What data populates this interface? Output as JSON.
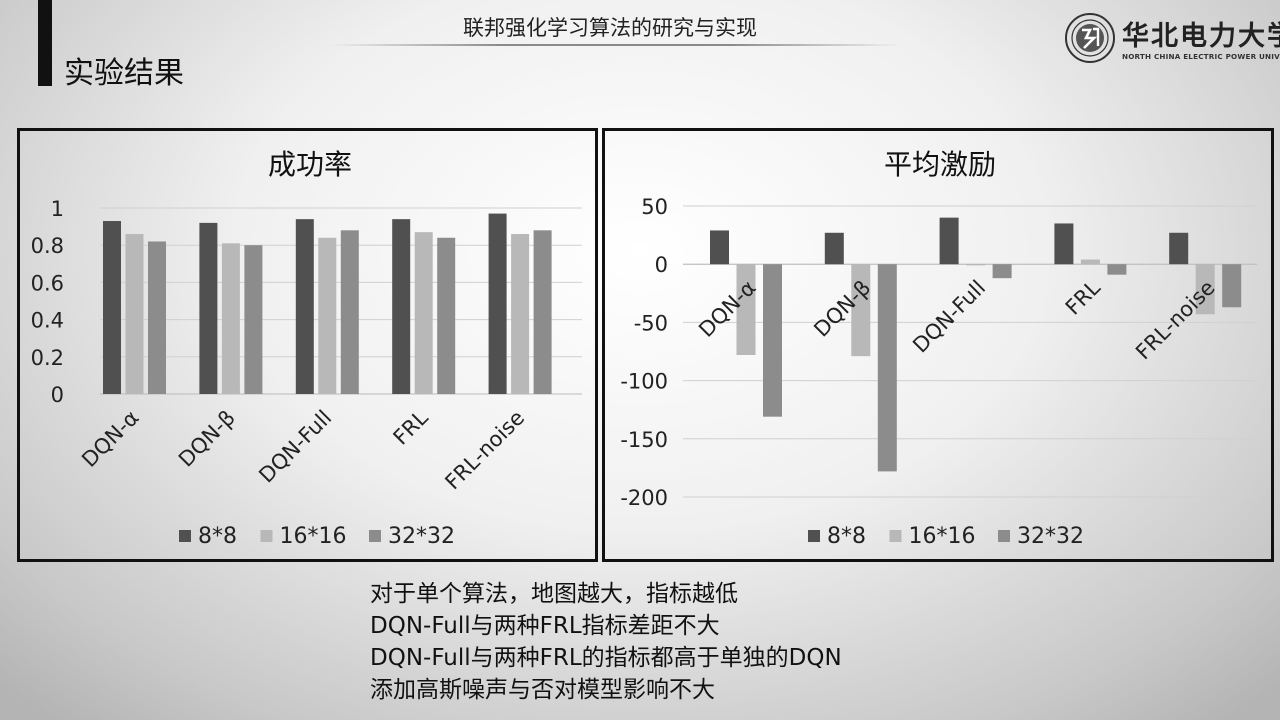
{
  "header": {
    "title": "联邦强化学习算法的研究与实现",
    "section_title": "实验结果"
  },
  "logo": {
    "cn": "华北电力大学",
    "en": "NORTH CHINA ELECTRIC POWER UNIVERSITY"
  },
  "notes": [
    "对于单个算法，地图越大，指标越低",
    "DQN-Full与两种FRL指标差距不大",
    "DQN-Full与两种FRL的指标都高于单独的DQN",
    "添加高斯噪声与否对模型影响不大"
  ],
  "chart_data": [
    {
      "type": "bar",
      "title": "成功率",
      "categories": [
        "DQN-α",
        "DQN-β",
        "DQN-Full",
        "FRL",
        "FRL-noise"
      ],
      "series": [
        {
          "name": "8*8",
          "color": "#505050",
          "values": [
            0.93,
            0.92,
            0.94,
            0.94,
            0.97
          ]
        },
        {
          "name": "16*16",
          "color": "#b8b8b8",
          "values": [
            0.86,
            0.81,
            0.84,
            0.87,
            0.86
          ]
        },
        {
          "name": "32*32",
          "color": "#8c8c8c",
          "values": [
            0.82,
            0.8,
            0.88,
            0.84,
            0.88
          ]
        }
      ],
      "ylim": [
        0,
        1
      ],
      "yticks": [
        0,
        0.2,
        0.4,
        0.6,
        0.8,
        1
      ],
      "ytick_labels": [
        "0",
        "0.2",
        "0.4",
        "0.6",
        "0.8",
        "1"
      ],
      "grid": true,
      "legend": "bottom"
    },
    {
      "type": "bar",
      "title": "平均激励",
      "categories": [
        "DQN-α",
        "DQN-β",
        "DQN-Full",
        "FRL",
        "FRL-noise"
      ],
      "series": [
        {
          "name": "8*8",
          "color": "#505050",
          "values": [
            29,
            27,
            40,
            35,
            27
          ]
        },
        {
          "name": "16*16",
          "color": "#b8b8b8",
          "values": [
            -78,
            -79,
            -1,
            4,
            -43
          ]
        },
        {
          "name": "32*32",
          "color": "#8c8c8c",
          "values": [
            -131,
            -178,
            -12,
            -9,
            -37
          ]
        }
      ],
      "ylim": [
        -200,
        50
      ],
      "yticks": [
        -200,
        -150,
        -100,
        -50,
        0,
        50
      ],
      "ytick_labels": [
        "-200",
        "-150",
        "-100",
        "-50",
        "0",
        "50"
      ],
      "grid": true,
      "legend": "bottom"
    }
  ]
}
